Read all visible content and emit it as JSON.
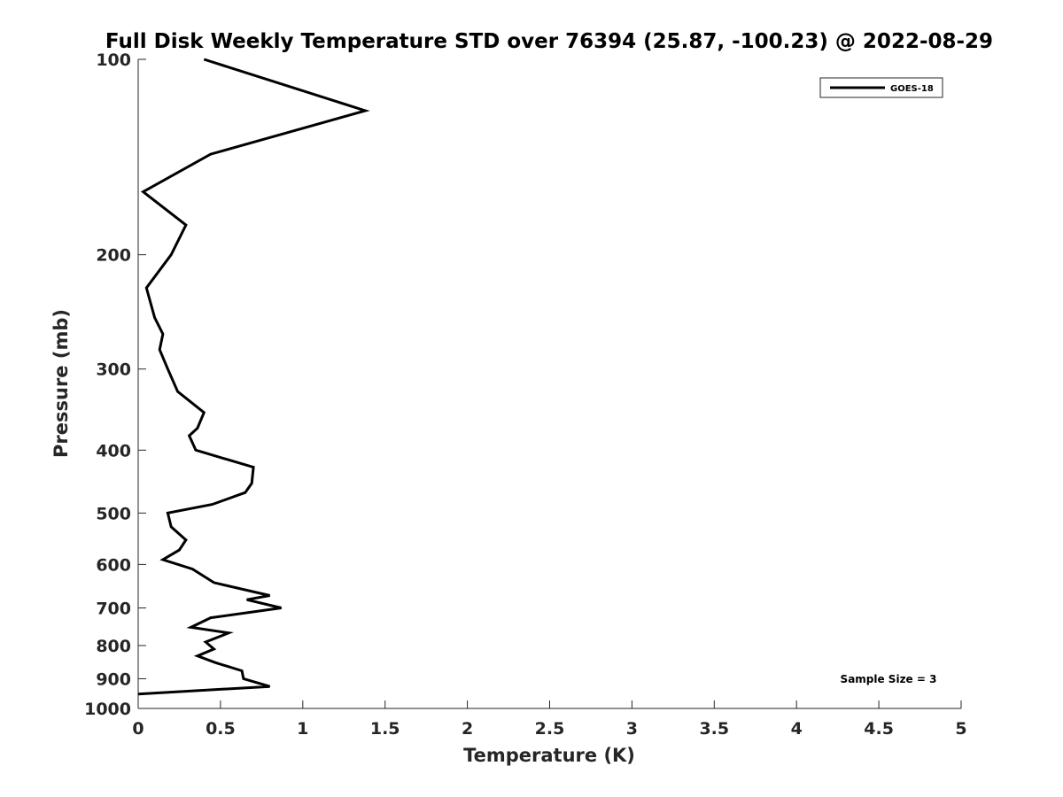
{
  "chart_data": {
    "type": "line",
    "title": "Full Disk Weekly Temperature STD over 76394 (25.87, -100.23) @ 2022-08-29",
    "xlabel": "Temperature (K)",
    "ylabel": "Pressure (mb)",
    "xlim": [
      0,
      5
    ],
    "ylim": [
      100,
      1000
    ],
    "y_scale": "log",
    "y_reversed": true,
    "x_ticks": [
      0,
      0.5,
      1,
      1.5,
      2,
      2.5,
      3,
      3.5,
      4,
      4.5,
      5
    ],
    "x_tick_labels": [
      "0",
      "0.5",
      "1",
      "1.5",
      "2",
      "2.5",
      "3",
      "3.5",
      "4",
      "4.5",
      "5"
    ],
    "y_ticks": [
      100,
      200,
      300,
      400,
      500,
      600,
      700,
      800,
      900,
      1000
    ],
    "y_tick_labels": [
      "100",
      "200",
      "300",
      "400",
      "500",
      "600",
      "700",
      "800",
      "900",
      "1000"
    ],
    "grid": false,
    "legend_position": "top-right",
    "annotation": "Sample Size = 3",
    "series": [
      {
        "name": "GOES-18",
        "color": "#000000",
        "points": [
          [
            0.4,
            100
          ],
          [
            1.38,
            120
          ],
          [
            0.44,
            140
          ],
          [
            0.03,
            160
          ],
          [
            0.29,
            180
          ],
          [
            0.2,
            200
          ],
          [
            0.05,
            225
          ],
          [
            0.1,
            250
          ],
          [
            0.15,
            265
          ],
          [
            0.13,
            280
          ],
          [
            0.18,
            300
          ],
          [
            0.24,
            325
          ],
          [
            0.4,
            350
          ],
          [
            0.36,
            370
          ],
          [
            0.31,
            380
          ],
          [
            0.35,
            400
          ],
          [
            0.7,
            425
          ],
          [
            0.69,
            450
          ],
          [
            0.65,
            465
          ],
          [
            0.45,
            485
          ],
          [
            0.18,
            500
          ],
          [
            0.2,
            525
          ],
          [
            0.29,
            550
          ],
          [
            0.25,
            570
          ],
          [
            0.15,
            590
          ],
          [
            0.33,
            610
          ],
          [
            0.46,
            640
          ],
          [
            0.8,
            670
          ],
          [
            0.66,
            680
          ],
          [
            0.87,
            700
          ],
          [
            0.44,
            725
          ],
          [
            0.32,
            750
          ],
          [
            0.55,
            765
          ],
          [
            0.41,
            790
          ],
          [
            0.46,
            810
          ],
          [
            0.36,
            830
          ],
          [
            0.47,
            850
          ],
          [
            0.63,
            875
          ],
          [
            0.64,
            900
          ],
          [
            0.8,
            925
          ],
          [
            0.0,
            950
          ]
        ]
      }
    ]
  }
}
